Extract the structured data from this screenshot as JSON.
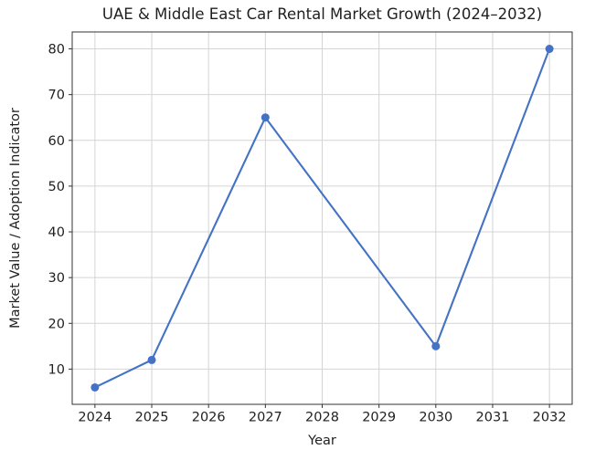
{
  "chart_data": {
    "type": "line",
    "title": "UAE & Middle East Car Rental Market Growth (2024–2032)",
    "xlabel": "Year",
    "ylabel": "Market Value / Adoption Indicator",
    "x": [
      2024,
      2025,
      2027,
      2030,
      2032
    ],
    "values": [
      6,
      12,
      65,
      15,
      80
    ],
    "series": [
      {
        "name": "Market Value / Adoption Indicator",
        "x": [
          2024,
          2025,
          2027,
          2030,
          2032
        ],
        "values": [
          6,
          12,
          65,
          15,
          80
        ]
      }
    ],
    "x_ticks": [
      2024,
      2025,
      2026,
      2027,
      2028,
      2029,
      2030,
      2031,
      2032
    ],
    "y_ticks": [
      10,
      20,
      30,
      40,
      50,
      60,
      70,
      80
    ],
    "xlim": [
      2023.6,
      2032.4
    ],
    "ylim": [
      2.3,
      83.7
    ],
    "grid": true,
    "legend": "none",
    "line_color": "#4472c4",
    "marker": "circle",
    "marker_color": "#4472c4",
    "grid_color": "#d4d4d4",
    "spine_color": "#333333",
    "background": "#ffffff"
  }
}
